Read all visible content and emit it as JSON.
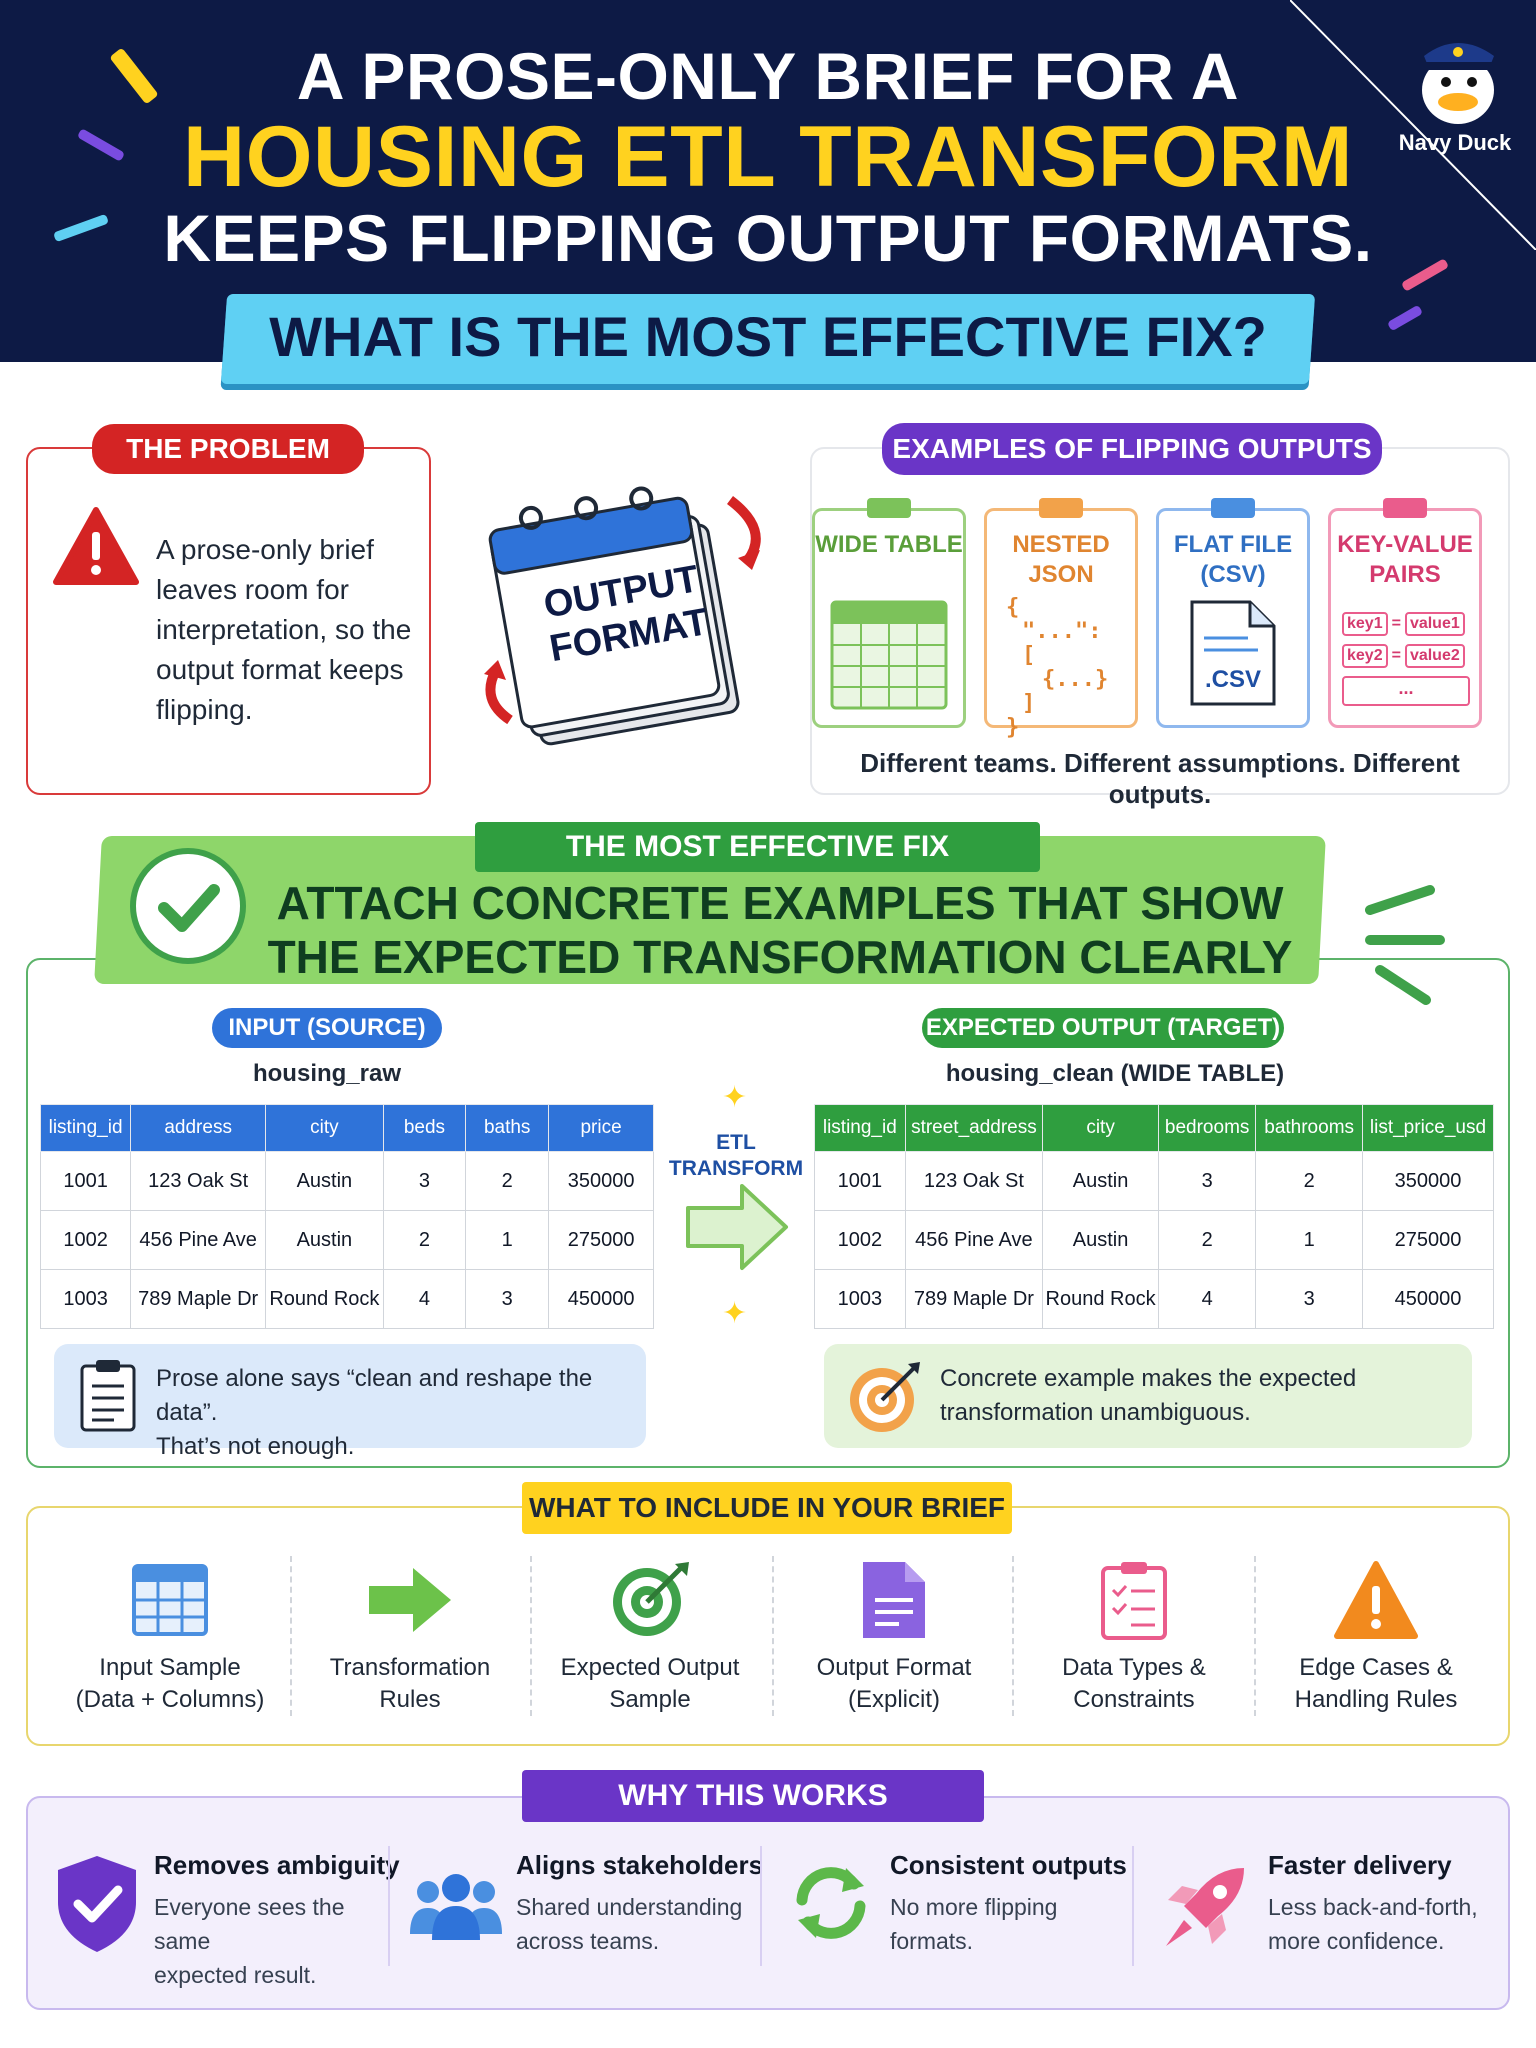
{
  "header": {
    "line1": "A PROSE-ONLY BRIEF FOR A",
    "line2": "HOUSING ETL TRANSFORM",
    "line3": "KEEPS FLIPPING OUTPUT FORMATS.",
    "question": "WHAT IS THE MOST EFFECTIVE FIX?",
    "brand": "Navy Duck"
  },
  "problem": {
    "pill": "THE PROBLEM",
    "text": "A prose-only brief leaves room for interpretation, so the output format keeps flipping.",
    "calendar_label_1": "OUTPUT",
    "calendar_label_2": "FORMAT"
  },
  "examples": {
    "pill": "EXAMPLES OF FLIPPING OUTPUTS",
    "cards": [
      {
        "title": "WIDE TABLE",
        "color": "#7cc25a"
      },
      {
        "title": "NESTED JSON",
        "color": "#f2a24a",
        "json_1": "{",
        "json_2": "\"...\": [",
        "json_3": "{...}",
        "json_4": "]",
        "json_5": "}"
      },
      {
        "title": "FLAT FILE (CSV)",
        "color": "#4a8fe0",
        "ext": ".CSV"
      },
      {
        "title": "KEY-VALUE PAIRS",
        "color": "#ea5c8c",
        "kv": [
          [
            "key1",
            "=",
            "value1"
          ],
          [
            "key2",
            "=",
            "value2"
          ]
        ],
        "more": "..."
      }
    ],
    "caption": "Different teams. Different assumptions. Different outputs."
  },
  "fix": {
    "pill": "THE MOST EFFECTIVE FIX",
    "title_line1": "ATTACH CONCRETE EXAMPLES THAT SHOW",
    "title_line2": "THE EXPECTED TRANSFORMATION CLEARLY"
  },
  "input": {
    "pill": "INPUT (SOURCE)",
    "table_name": "housing_raw",
    "columns": [
      "listing_id",
      "address",
      "city",
      "beds",
      "baths",
      "price"
    ],
    "rows": [
      [
        "1001",
        "123 Oak St",
        "Austin",
        "3",
        "2",
        "350000"
      ],
      [
        "1002",
        "456 Pine Ave",
        "Austin",
        "2",
        "1",
        "275000"
      ],
      [
        "1003",
        "789 Maple Dr",
        "Round Rock",
        "4",
        "3",
        "450000"
      ]
    ]
  },
  "output": {
    "pill": "EXPECTED OUTPUT (TARGET)",
    "table_name": "housing_clean (WIDE TABLE)",
    "columns": [
      "listing_id",
      "street_address",
      "city",
      "bedrooms",
      "bathrooms",
      "list_price_usd"
    ],
    "rows": [
      [
        "1001",
        "123 Oak St",
        "Austin",
        "3",
        "2",
        "350000"
      ],
      [
        "1002",
        "456 Pine Ave",
        "Austin",
        "2",
        "1",
        "275000"
      ],
      [
        "1003",
        "789 Maple Dr",
        "Round Rock",
        "4",
        "3",
        "450000"
      ]
    ]
  },
  "etl_label_1": "ETL",
  "etl_label_2": "TRANSFORM",
  "notes": {
    "blue_line1": "Prose alone says “clean and reshape the data”.",
    "blue_line2": "That’s not enough.",
    "green_line1": "Concrete example makes the expected",
    "green_line2": "transformation unambiguous."
  },
  "include": {
    "pill": "WHAT TO INCLUDE IN YOUR BRIEF",
    "items": [
      {
        "line1": "Input Sample",
        "line2": "(Data + Columns)",
        "icon": "table-icon"
      },
      {
        "line1": "Transformation",
        "line2": "Rules",
        "icon": "arrow-right-icon"
      },
      {
        "line1": "Expected Output",
        "line2": "Sample",
        "icon": "target-icon"
      },
      {
        "line1": "Output Format",
        "line2": "(Explicit)",
        "icon": "document-icon"
      },
      {
        "line1": "Data Types &",
        "line2": "Constraints",
        "icon": "checklist-icon"
      },
      {
        "line1": "Edge Cases &",
        "line2": "Handling Rules",
        "icon": "warning-icon"
      }
    ]
  },
  "why": {
    "pill": "WHY THIS WORKS",
    "items": [
      {
        "title": "Removes ambiguity",
        "line1": "Everyone sees the same",
        "line2": "expected result.",
        "icon": "shield-check-icon"
      },
      {
        "title": "Aligns stakeholders",
        "line1": "Shared understanding",
        "line2": "across teams.",
        "icon": "people-icon"
      },
      {
        "title": "Consistent outputs",
        "line1": "No more flipping",
        "line2": "formats.",
        "icon": "refresh-icon"
      },
      {
        "title": "Faster delivery",
        "line1": "Less back-and-forth,",
        "line2": "more confidence.",
        "icon": "rocket-icon"
      }
    ]
  }
}
